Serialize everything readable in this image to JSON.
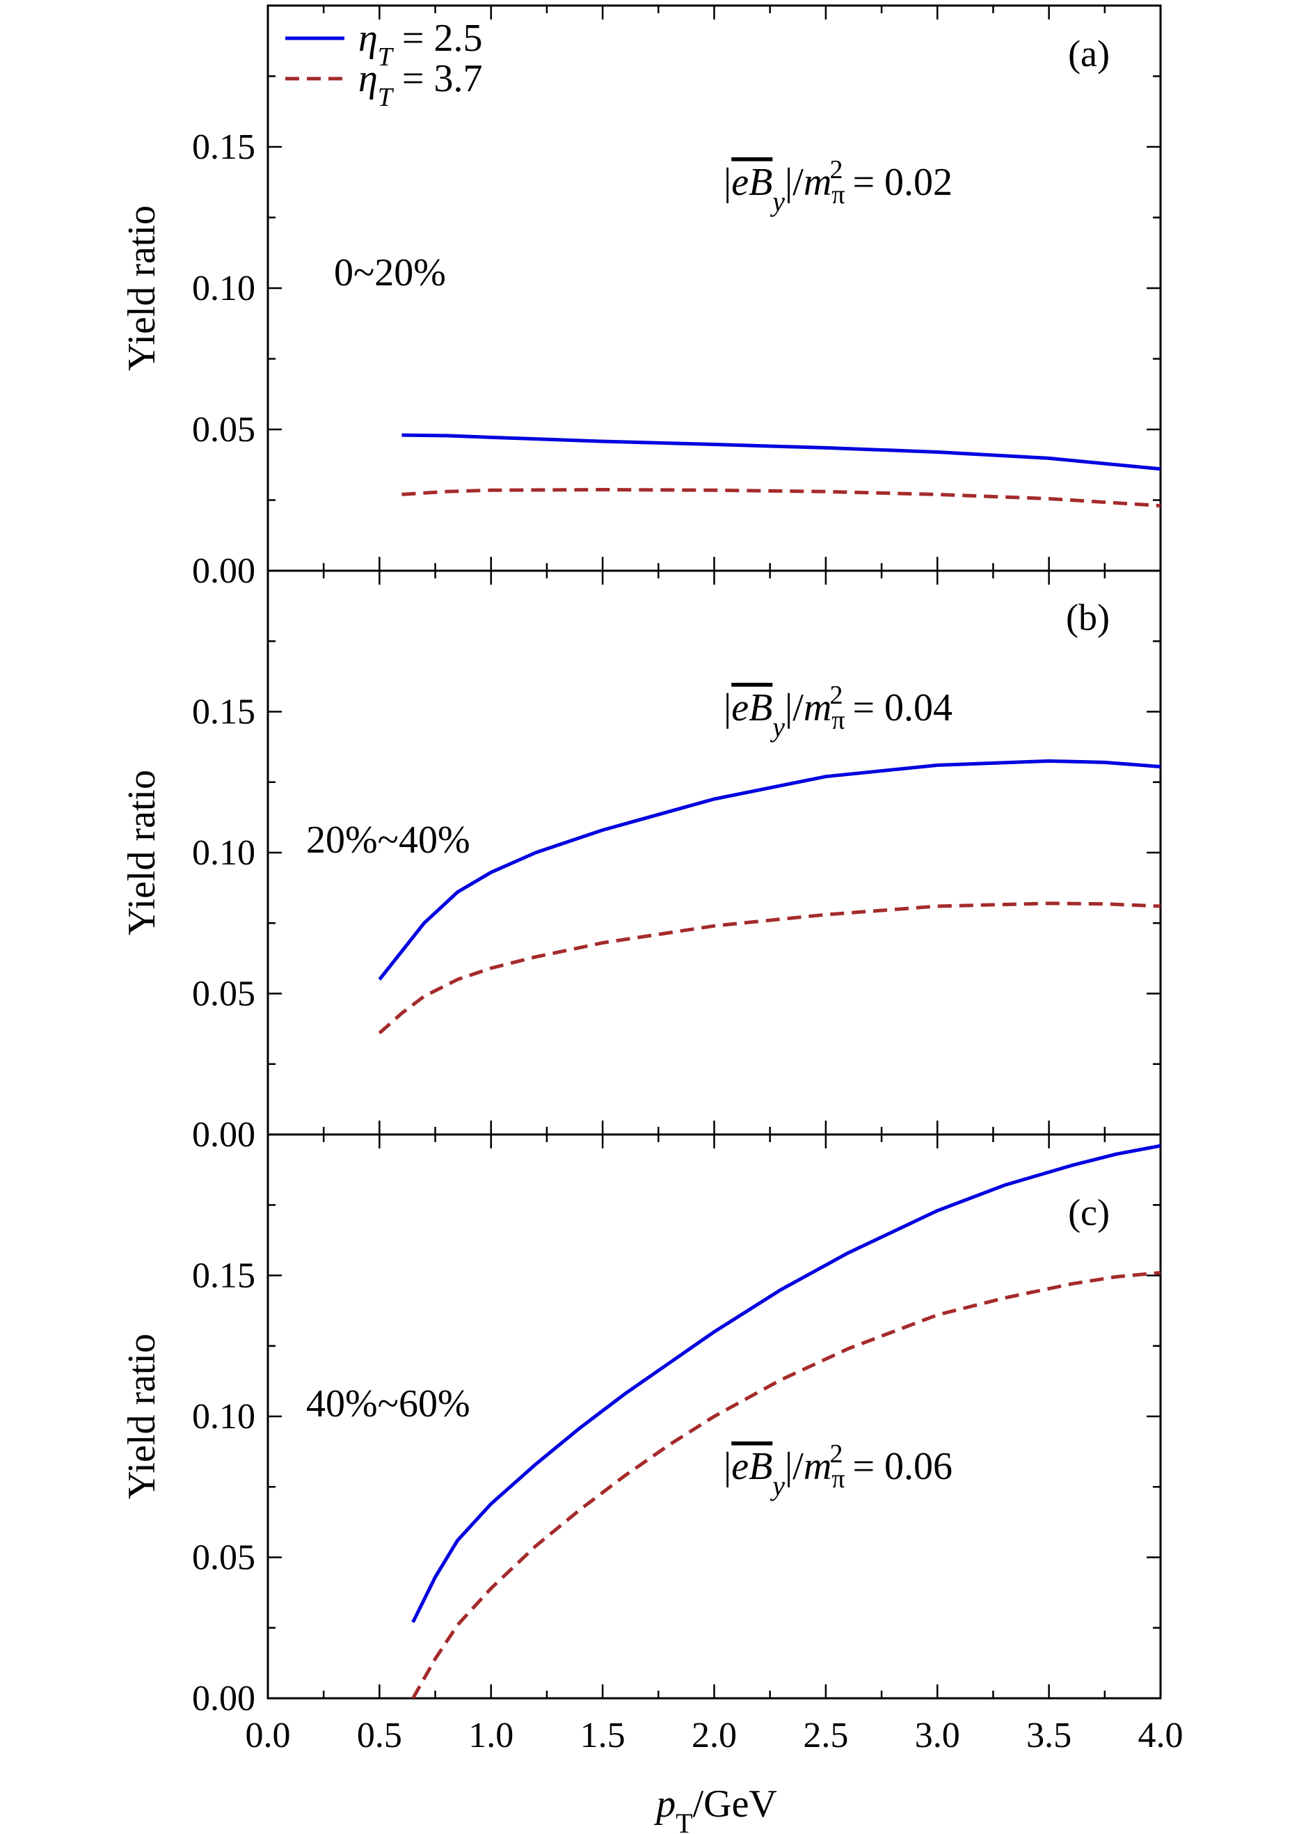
{
  "figure": {
    "ylabel": "Yield ratio",
    "xlabel_main": "p",
    "xlabel_sub": "T",
    "xlabel_unit": "/GeV",
    "xticks": [
      "0.0",
      "0.5",
      "1.0",
      "1.5",
      "2.0",
      "2.5",
      "3.0",
      "3.5",
      "4.0"
    ],
    "yticks": [
      "0.00",
      "0.05",
      "0.10",
      "0.15"
    ],
    "colors": {
      "solid": "#0000e0",
      "dashed": "#a52a2a"
    }
  },
  "legend": [
    {
      "symbol": "η",
      "sub": "T",
      "rest": " = 2.5"
    },
    {
      "symbol": "η",
      "sub": "T",
      "rest": " = 3.7"
    }
  ],
  "annotations": {
    "field_prefix": "|",
    "field_symbol": "eB",
    "field_sub": "y",
    "field_mid": "|/m",
    "field_mid_sub": "π",
    "field_mid_sup": "2",
    "field_eq": " = "
  },
  "chart_data": [
    {
      "type": "line",
      "panel_label": "(a)",
      "centrality": "0~20%",
      "field_value": "0.02",
      "xlim": [
        0,
        4
      ],
      "ylim": [
        0,
        0.2
      ],
      "series": [
        {
          "name": "ηT = 2.5",
          "style": "solid",
          "x": [
            0.6,
            0.8,
            1.0,
            1.5,
            2.0,
            2.5,
            3.0,
            3.5,
            4.0
          ],
          "y": [
            0.048,
            0.0478,
            0.0472,
            0.0458,
            0.0447,
            0.0435,
            0.042,
            0.0398,
            0.036
          ]
        },
        {
          "name": "ηT = 3.7",
          "style": "dashed",
          "x": [
            0.6,
            0.8,
            1.0,
            1.5,
            2.0,
            2.5,
            3.0,
            3.5,
            4.0
          ],
          "y": [
            0.027,
            0.028,
            0.0285,
            0.0287,
            0.0285,
            0.028,
            0.027,
            0.0255,
            0.023
          ]
        }
      ]
    },
    {
      "type": "line",
      "panel_label": "(b)",
      "centrality": "20%~40%",
      "field_value": "0.04",
      "xlim": [
        0,
        4
      ],
      "ylim": [
        0,
        0.2
      ],
      "series": [
        {
          "name": "ηT = 2.5",
          "style": "solid",
          "x": [
            0.5,
            0.6,
            0.7,
            0.85,
            1.0,
            1.2,
            1.5,
            2.0,
            2.5,
            3.0,
            3.5,
            3.75,
            4.0
          ],
          "y": [
            0.055,
            0.065,
            0.075,
            0.086,
            0.093,
            0.1,
            0.108,
            0.119,
            0.127,
            0.131,
            0.1325,
            0.132,
            0.1305
          ]
        },
        {
          "name": "ηT = 3.7",
          "style": "dashed",
          "x": [
            0.5,
            0.6,
            0.7,
            0.85,
            1.0,
            1.2,
            1.5,
            2.0,
            2.5,
            3.0,
            3.5,
            3.75,
            4.0
          ],
          "y": [
            0.036,
            0.043,
            0.049,
            0.055,
            0.059,
            0.063,
            0.068,
            0.074,
            0.078,
            0.081,
            0.082,
            0.0818,
            0.081
          ]
        }
      ]
    },
    {
      "type": "line",
      "panel_label": "(c)",
      "centrality": "40%~60%",
      "field_value": "0.06",
      "xlim": [
        0,
        4
      ],
      "ylim": [
        0,
        0.2
      ],
      "series": [
        {
          "name": "ηT = 2.5",
          "style": "solid",
          "x": [
            0.65,
            0.75,
            0.85,
            1.0,
            1.2,
            1.4,
            1.6,
            1.8,
            2.0,
            2.3,
            2.6,
            3.0,
            3.3,
            3.6,
            3.8,
            4.0
          ],
          "y": [
            0.027,
            0.043,
            0.056,
            0.069,
            0.083,
            0.096,
            0.108,
            0.119,
            0.13,
            0.145,
            0.158,
            0.173,
            0.182,
            0.189,
            0.193,
            0.196
          ]
        },
        {
          "name": "ηT = 3.7",
          "style": "dashed",
          "x": [
            0.65,
            0.75,
            0.85,
            1.0,
            1.2,
            1.4,
            1.6,
            1.8,
            2.0,
            2.3,
            2.6,
            3.0,
            3.3,
            3.6,
            3.8,
            4.0
          ],
          "y": [
            0.0,
            0.014,
            0.026,
            0.039,
            0.054,
            0.067,
            0.079,
            0.09,
            0.1,
            0.113,
            0.124,
            0.136,
            0.142,
            0.147,
            0.1495,
            0.151
          ]
        }
      ]
    }
  ]
}
